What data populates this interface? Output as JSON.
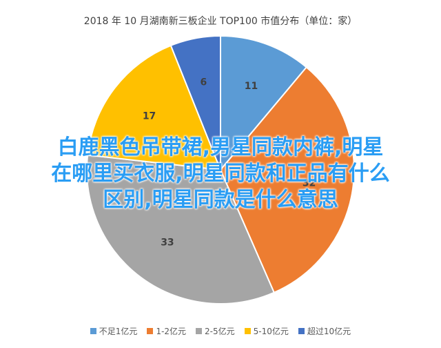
{
  "chart_data": {
    "type": "pie",
    "title": "2018 年 10 月湖南新三板企业 TOP100 市值分布（单位：家）",
    "categories": [
      "不足1亿元",
      "1-2亿元",
      "2-5亿元",
      "5-10亿元",
      "超过10亿元"
    ],
    "values": [
      11,
      32,
      33,
      17,
      6
    ],
    "colors": [
      "#5b9bd5",
      "#ed7d31",
      "#a5a5a5",
      "#ffc000",
      "#4472c4"
    ],
    "legend_position": "bottom"
  },
  "overlay": {
    "lines": [
      "白鹿黑色吊带裙,男星同款内裤,明星",
      "在哪里买衣服,明星同款和正品有什么",
      "区别,明星同款是什么意思"
    ]
  }
}
